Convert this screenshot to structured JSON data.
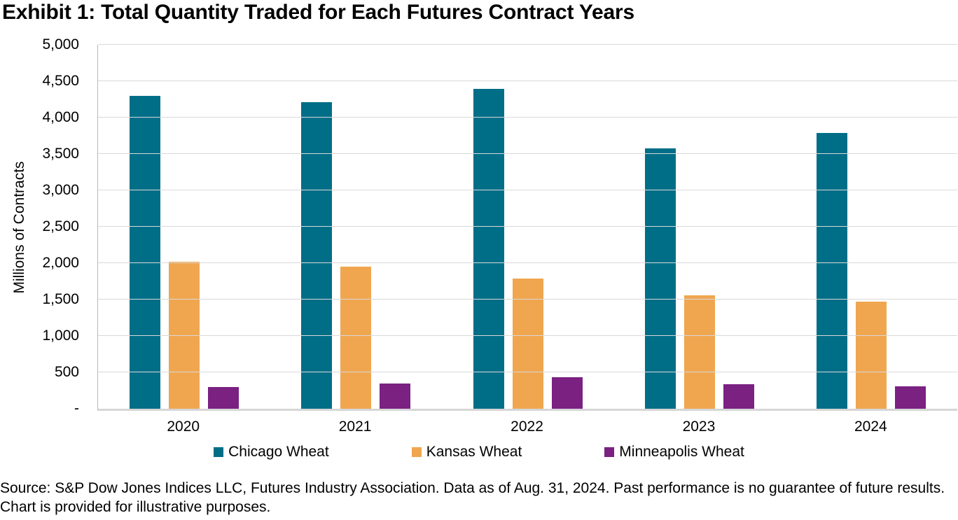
{
  "title": "Exhibit 1: Total Quantity Traded for Each Futures Contract Years",
  "footer": "Source: S&P Dow Jones Indices LLC, Futures Industry Association. Data as of Aug. 31, 2024. Past performance is no guarantee of future results. Chart is provided for illustrative purposes.",
  "chart_data": {
    "type": "bar",
    "title": "Exhibit 1: Total Quantity Traded for Each Futures Contract Years",
    "xlabel": "",
    "ylabel": "Millions of Contracts",
    "categories": [
      "2020",
      "2021",
      "2022",
      "2023",
      "2024"
    ],
    "series": [
      {
        "name": "Chicago Wheat",
        "color": "#006E87",
        "values": [
          4300,
          4210,
          4390,
          3580,
          3790
        ]
      },
      {
        "name": "Kansas Wheat",
        "color": "#F0A64F",
        "values": [
          2020,
          1950,
          1790,
          1560,
          1470
        ]
      },
      {
        "name": "Minneapolis Wheat",
        "color": "#7A2182",
        "values": [
          300,
          350,
          430,
          340,
          310
        ]
      }
    ],
    "ylim": [
      0,
      5000
    ],
    "ytick_step": 500,
    "y_tick_labels": [
      "5,000",
      "4,500",
      "4,000",
      "3,500",
      "3,000",
      "2,500",
      "2,000",
      "1,500",
      "1,000",
      "500",
      "-"
    ],
    "grid": true,
    "legend_position": "bottom"
  },
  "colors": {
    "gridline": "#D9D9D9",
    "axis_line": "#B9B9B9",
    "text": "#000000"
  }
}
